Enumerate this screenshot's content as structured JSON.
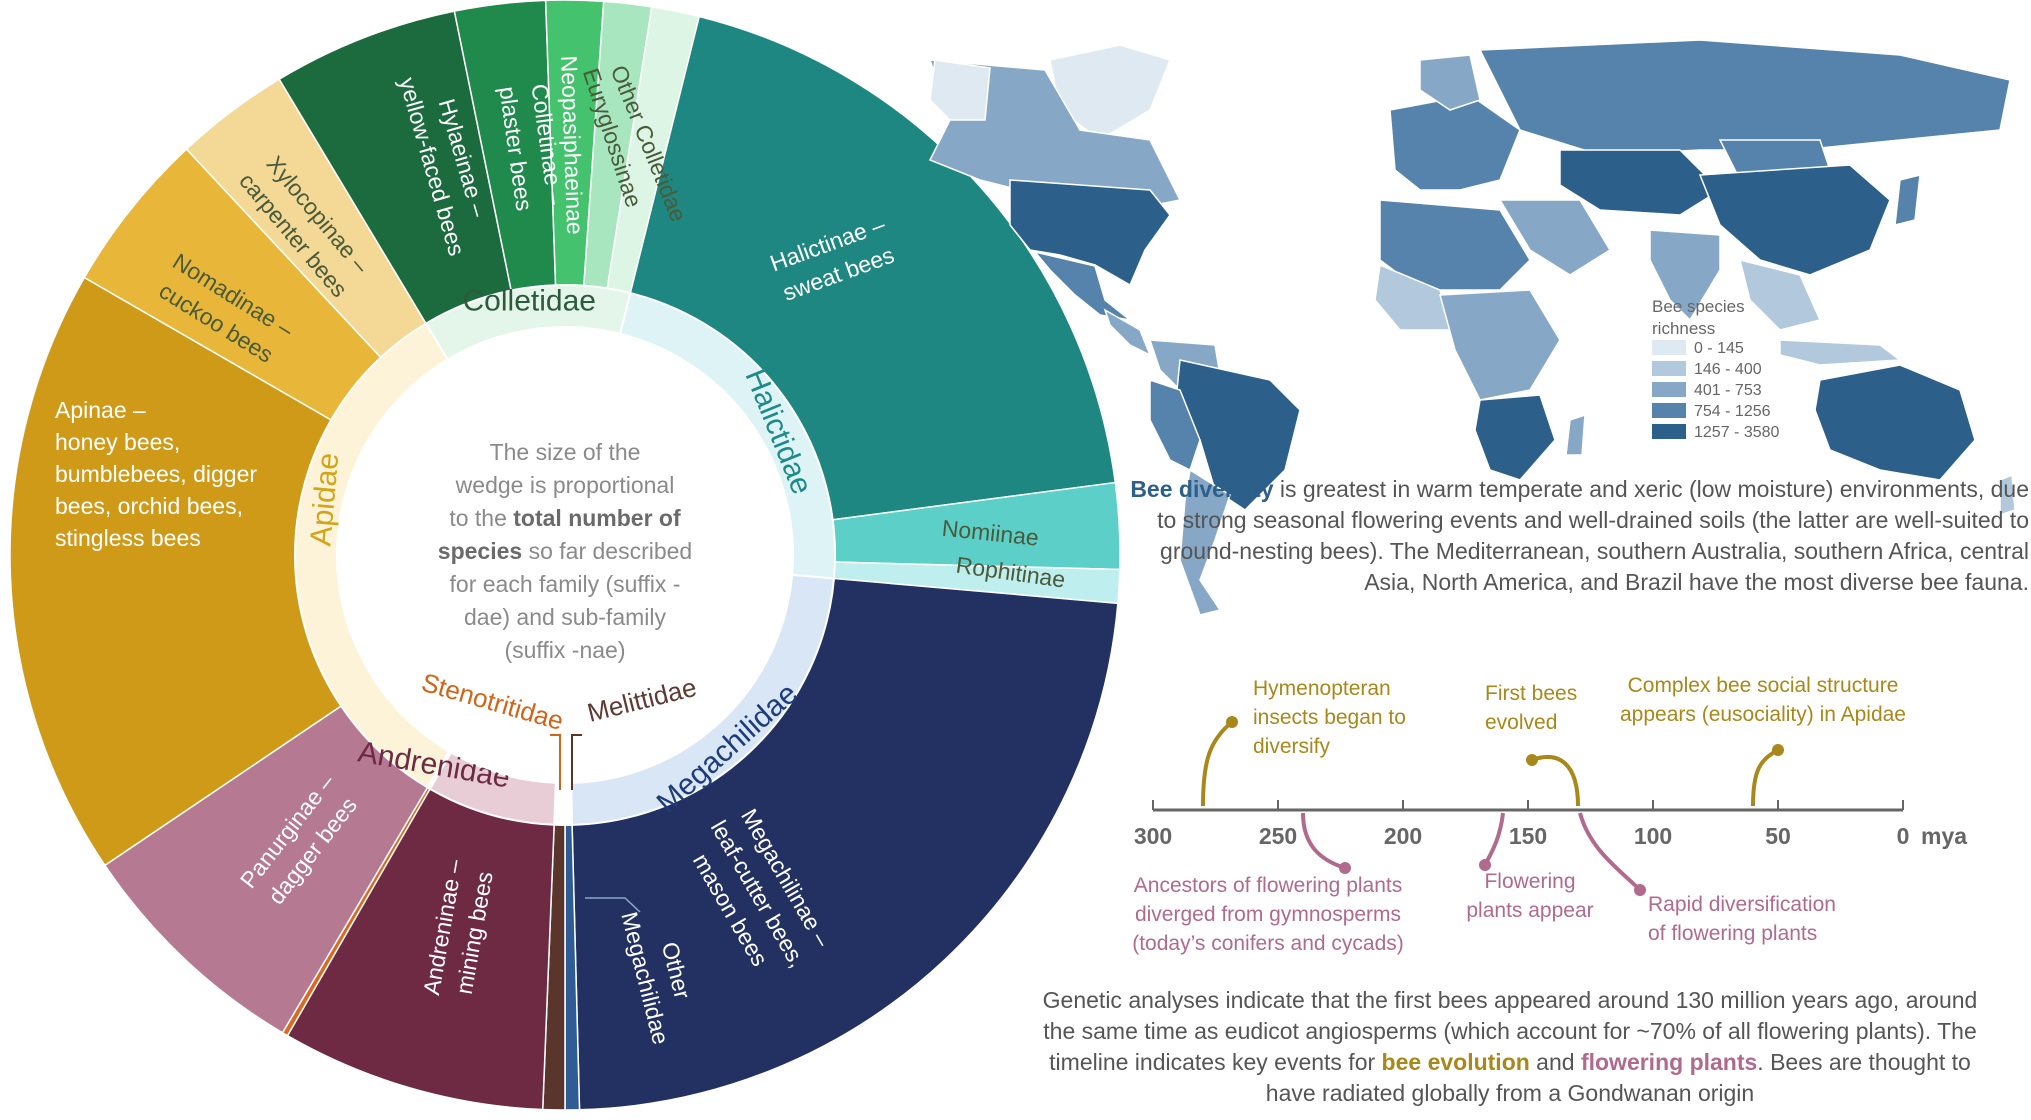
{
  "sunburst": {
    "center_text": {
      "lines": [
        "The size of the",
        "wedge is proportional",
        "to the total number of",
        "species so far described",
        "for each family (suffix -",
        "dae) and sub-family",
        "(suffix -nae)"
      ],
      "bold_phrases": [
        "total number of",
        "species"
      ]
    },
    "families": [
      {
        "label": "Colletidae",
        "color": "#e4f5ea",
        "text_color": "#2d5a3c"
      },
      {
        "label": "Halictidae",
        "color": "#ddf3f5",
        "text_color": "#1e8a8a"
      },
      {
        "label": "Megachilidae",
        "color": "#d9e6f6",
        "text_color": "#1f3c7a"
      },
      {
        "label": "Melittidae",
        "color": "#ffffff",
        "text_color": "#5e3a32"
      },
      {
        "label": "Andrenidae",
        "color": "#e8ccd6",
        "text_color": "#6d2b43"
      },
      {
        "label": "Stenotritidae",
        "color": "#ffffff",
        "text_color": "#d0651a"
      },
      {
        "label": "Apidae",
        "color": "#fdf3d8",
        "text_color": "#d4a417"
      }
    ],
    "subfamilies": [
      {
        "lines": [
          "Hylaeinae –",
          "yellow-faced bees"
        ],
        "color": "#1b6b3f"
      },
      {
        "lines": [
          "Colletinae –",
          "plaster bees"
        ],
        "color": "#1f8a4c"
      },
      {
        "lines": [
          "Neopasiphaeinae"
        ],
        "color": "#45c26e"
      },
      {
        "lines": [
          "Euryglossinae"
        ],
        "color": "#a8e6bf"
      },
      {
        "lines": [
          "Other Colletidae"
        ],
        "color": "#ddf5e4"
      },
      {
        "lines": [
          "Halictinae –",
          "sweat bees"
        ],
        "color": "#1e8781"
      },
      {
        "lines": [
          "Nomiinae"
        ],
        "color": "#5ccfc9"
      },
      {
        "lines": [
          "Rophitinae"
        ],
        "color": "#bfeeee"
      },
      {
        "lines": [
          "Megachilinae –",
          "leaf-cutter bees,",
          "mason bees"
        ],
        "color": "#233162"
      },
      {
        "lines": [
          "Other",
          "Megachilidae"
        ],
        "color": "#2f5c95"
      },
      {
        "lines": [
          "Melittidae"
        ],
        "color": "#5a352b"
      },
      {
        "lines": [
          "Andreninae –",
          "mining bees"
        ],
        "color": "#6e2a43"
      },
      {
        "lines": [
          "Stenotritidae"
        ],
        "color": "#d86a22"
      },
      {
        "lines": [
          "Panurginae –",
          "dagger bees"
        ],
        "color": "#b57991"
      },
      {
        "lines": [
          "Apinae –",
          "honey bees,",
          "bumblebees, digger",
          "bees, orchid bees,",
          "stingless bees"
        ],
        "color": "#cf9a17"
      },
      {
        "lines": [
          "Nomadinae –",
          "cuckoo bees"
        ],
        "color": "#e8b73a"
      },
      {
        "lines": [
          "Xylocopinae –",
          "carpenter bees"
        ],
        "color": "#f3d995"
      }
    ]
  },
  "map": {
    "legend_title": [
      "Bee species",
      "richness"
    ],
    "legend": [
      {
        "label": "0 - 145",
        "color": "#dfe9f2"
      },
      {
        "label": "146 - 400",
        "color": "#b2c8dc"
      },
      {
        "label": "401 - 753",
        "color": "#86a8c6"
      },
      {
        "label": "754 - 1256",
        "color": "#5583ab"
      },
      {
        "label": "1257 - 3580",
        "color": "#2c5f8a"
      }
    ]
  },
  "diversity_text": {
    "bold": "Bee diversity",
    "rest": " is greatest in warm temperate and xeric (low moisture) environments, due to strong seasonal flowering events and well-drained soils (the latter are well-suited to ground-nesting bees). The Mediterranean, southern Australia, southern Africa, central Asia, North America, and Brazil have the most diverse bee fauna."
  },
  "timeline": {
    "ticks": [
      "300",
      "250",
      "200",
      "150",
      "100",
      "50",
      "0"
    ],
    "unit": "mya",
    "bee_color": "#a8881a",
    "plant_color": "#b06a8e",
    "events": [
      {
        "lines": [
          "Hymenopteran",
          "insects began to",
          "diversify"
        ],
        "type": "bee"
      },
      {
        "lines": [
          "First bees",
          "evolved"
        ],
        "type": "bee"
      },
      {
        "lines": [
          "Complex bee social structure",
          "appears (eusociality) in Apidae"
        ],
        "type": "bee"
      },
      {
        "lines": [
          "Ancestors of flowering plants",
          "diverged from gymnosperms",
          "(today’s conifers and cycads)"
        ],
        "type": "plant"
      },
      {
        "lines": [
          "Flowering",
          "plants appear"
        ],
        "type": "plant"
      },
      {
        "lines": [
          "Rapid diversification",
          "of flowering plants"
        ],
        "type": "plant"
      }
    ]
  },
  "genetic_text": {
    "part1": "Genetic analyses indicate that the first bees appeared around 130 million years ago, around the same time as eudicot angiosperms (which account for ~70% of all flowering plants). The timeline indicates key events for ",
    "bee": "bee evolution",
    "mid": " and ",
    "plant": "flowering plants",
    "end": ". Bees are thought to have radiated globally from a Gondwanan origin"
  }
}
